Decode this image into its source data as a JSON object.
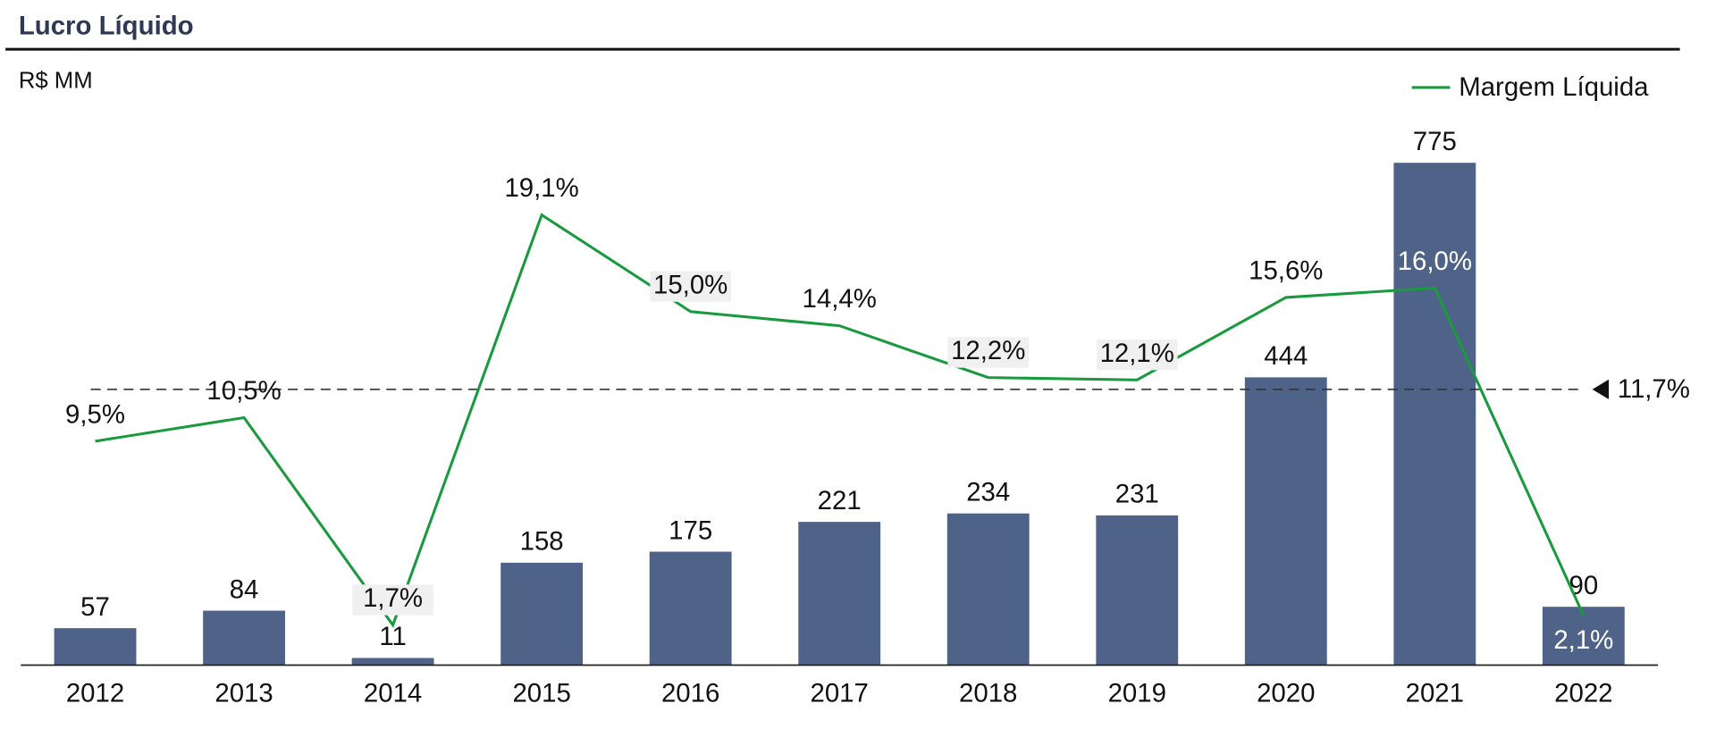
{
  "chart_data": {
    "type": "bar",
    "title": "Lucro Líquido",
    "y_label": "R$ MM",
    "categories": [
      "2012",
      "2013",
      "2014",
      "2015",
      "2016",
      "2017",
      "2018",
      "2019",
      "2020",
      "2021",
      "2022"
    ],
    "series": [
      {
        "type": "bar",
        "color": "#4f6389",
        "values": [
          57,
          84,
          11,
          158,
          175,
          221,
          234,
          231,
          444,
          775,
          90
        ]
      },
      {
        "type": "line",
        "name": "Margem Líquida",
        "axis": "y2",
        "color": "#1a9a3e",
        "values": [
          9.5,
          10.5,
          1.7,
          19.1,
          15.0,
          14.4,
          12.2,
          12.1,
          15.6,
          16.0,
          2.1
        ],
        "value_labels": [
          "9,5%",
          "10,5%",
          "1,7%",
          "19,1%",
          "15,0%",
          "14,4%",
          "12,2%",
          "12,1%",
          "15,6%",
          "16,0%",
          "2,1%"
        ]
      }
    ],
    "ylim": [
      0,
      800
    ],
    "y2lim": [
      0,
      22
    ],
    "reference_line": {
      "value": 11.7,
      "label": "11,7%",
      "axis": "y2"
    },
    "legend": "upper right"
  }
}
